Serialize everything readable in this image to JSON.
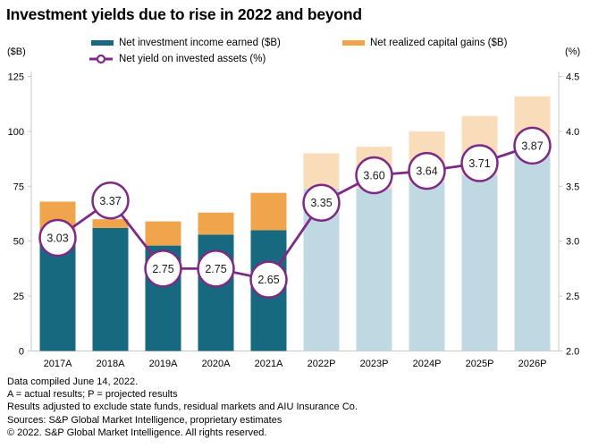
{
  "title": "Investment yields due to rise in 2022 and beyond",
  "legend": [
    {
      "label": "Net investment income earned ($B)",
      "marker": "square-swatch"
    },
    {
      "label": "Net realized capital gains ($B)",
      "marker": "square-swatch"
    },
    {
      "label": "Net yield on invested assets (%)",
      "marker": "line-open-circle"
    }
  ],
  "axes": {
    "left_unit": "($B)",
    "right_unit": "(%)",
    "left_ticks": [
      "125",
      "100",
      "75",
      "50",
      "25",
      "0"
    ],
    "right_ticks": [
      "4.5",
      "4.0",
      "3.5",
      "3.0",
      "2.5",
      "2.0"
    ]
  },
  "chart_data": {
    "type": "bar",
    "subtype": "stacked-bar-with-dual-axis-line",
    "title": "Investment yields due to rise in 2022 and beyond",
    "categories": [
      "2017A",
      "2018A",
      "2019A",
      "2020A",
      "2021A",
      "2022P",
      "2023P",
      "2024P",
      "2025P",
      "2026P"
    ],
    "projected_from_index": 5,
    "series": [
      {
        "name": "Net investment income earned ($B)",
        "type": "bar",
        "stack": "total",
        "axis": "left",
        "values": [
          49,
          56,
          48,
          53,
          55,
          74,
          74,
          77,
          80,
          92
        ]
      },
      {
        "name": "Net realized capital gains ($B)",
        "type": "bar",
        "stack": "total",
        "axis": "left",
        "values": [
          19,
          4,
          11,
          10,
          17,
          16,
          19,
          23,
          27,
          24
        ]
      },
      {
        "name": "Net yield on invested assets (%)",
        "type": "line",
        "axis": "right",
        "values": [
          3.03,
          3.37,
          2.75,
          2.75,
          2.65,
          3.35,
          3.6,
          3.64,
          3.71,
          3.87
        ],
        "point_labels": [
          "3.03",
          "3.37",
          "2.75",
          "2.75",
          "2.65",
          "3.35",
          "3.60",
          "3.64",
          "3.71",
          "3.87"
        ]
      }
    ],
    "left_axis": {
      "label": "($B)",
      "min": 0,
      "max": 125,
      "step": 25
    },
    "right_axis": {
      "label": "(%)",
      "min": 2.0,
      "max": 4.5,
      "step": 0.5
    },
    "grid": false,
    "legend_position": "top"
  },
  "colors": {
    "income_actual": "#16697F",
    "income_projected": "#BFD8E1",
    "gains_actual": "#F0A54D",
    "gains_projected": "#F9DDBA",
    "line": "#7D2A85",
    "marker_fill": "#FFFFFF",
    "axis_line": "#C9C9C9",
    "text": "#000000"
  },
  "footnotes": [
    "Data compiled June 14, 2022.",
    "A = actual results; P = projected results",
    "Results adjusted to exclude state funds, residual markets and AIU Insurance Co.",
    "Sources: S&P Global Market Intelligence, proprietary estimates",
    "© 2022. S&P Global Market Intelligence. All rights reserved."
  ]
}
